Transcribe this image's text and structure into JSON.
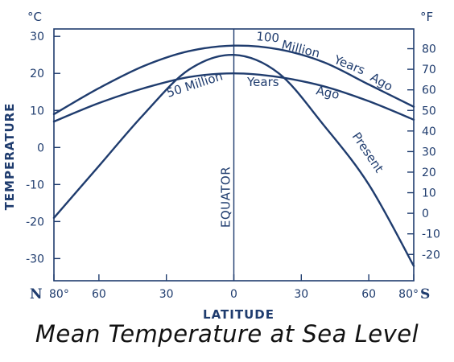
{
  "chart_data": {
    "type": "line",
    "title": "Mean Temperature at Sea Level",
    "xlabel": "LATITUDE",
    "ylabel": "TEMPERATURE",
    "unit_left": "°C",
    "unit_right": "°F",
    "x_end_labels": {
      "left": "N",
      "right": "S"
    },
    "x_tick_labels": [
      "80°",
      "60",
      "30",
      "0",
      "30",
      "60",
      "80°"
    ],
    "x_ticks": [
      -80,
      -60,
      -30,
      0,
      30,
      60,
      80
    ],
    "xlim": [
      -80,
      80
    ],
    "ylim": [
      -36,
      32
    ],
    "y_ticks_celsius": [
      30,
      20,
      10,
      0,
      -10,
      -20,
      -30
    ],
    "y_tick_labels_celsius": [
      "30",
      "20",
      "10",
      "0",
      "-10",
      "-20",
      "-30"
    ],
    "y_ticks_fahrenheit": [
      80,
      70,
      60,
      50,
      40,
      30,
      20,
      10,
      0,
      -10,
      -20
    ],
    "y_tick_labels_fahrenheit": [
      "80",
      "70",
      "60",
      "50",
      "40",
      "30",
      "20",
      "10",
      "0",
      "-10",
      "-20"
    ],
    "equator_label": "EQUATOR",
    "grid": false,
    "series": [
      {
        "name": "100 Million Years Ago",
        "label_words": [
          "100",
          "Million",
          "Years",
          "Ago"
        ],
        "x": [
          -80,
          -60,
          -40,
          -20,
          0,
          20,
          40,
          60,
          80
        ],
        "values": [
          9,
          16,
          22,
          26,
          27.5,
          26.5,
          23,
          17,
          11
        ]
      },
      {
        "name": "50 Million Years Ago",
        "label_words": [
          "50 Million",
          "Years",
          "Ago"
        ],
        "x": [
          -80,
          -60,
          -40,
          -20,
          0,
          20,
          40,
          60,
          80
        ],
        "values": [
          7,
          12,
          16,
          19,
          20,
          19,
          16.5,
          12.5,
          7.5
        ]
      },
      {
        "name": "Present",
        "label_words": [
          "Present"
        ],
        "x": [
          -80,
          -60,
          -40,
          -20,
          0,
          20,
          40,
          60,
          80
        ],
        "values": [
          -19,
          -5,
          9,
          21,
          25,
          20,
          6,
          -10,
          -32
        ]
      }
    ]
  }
}
